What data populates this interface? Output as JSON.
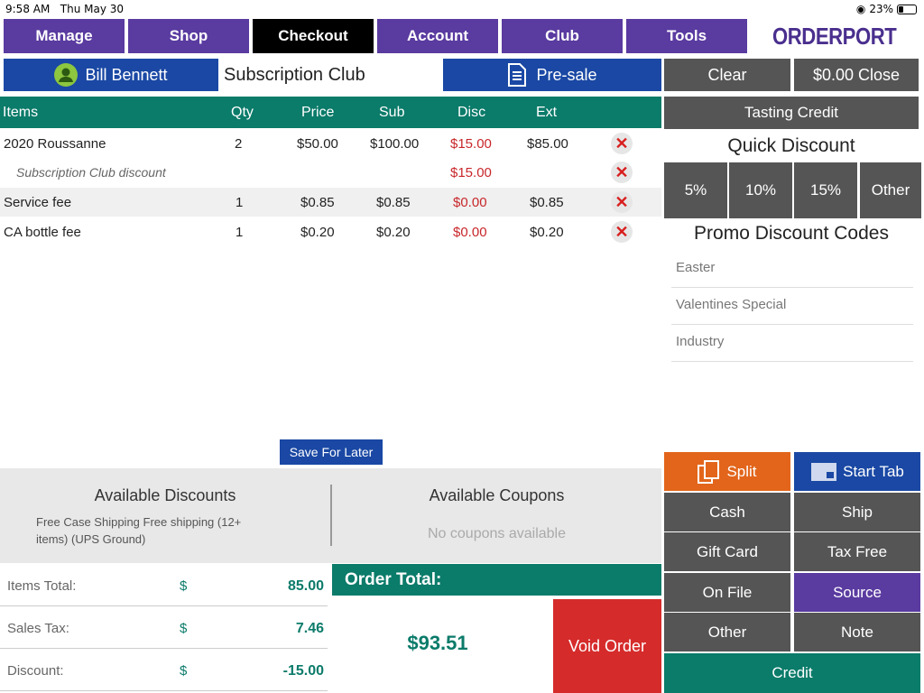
{
  "status_bar": {
    "time": "9:58 AM",
    "date": "Thu May 30",
    "battery": "23%"
  },
  "nav": {
    "manage": "Manage",
    "shop": "Shop",
    "checkout": "Checkout",
    "account": "Account",
    "club": "Club",
    "tools": "Tools"
  },
  "logo": {
    "text": "ORDERPORT"
  },
  "customer": {
    "name": "Bill Bennett",
    "club": "Subscription Club",
    "presale": "Pre-sale"
  },
  "actions": {
    "clear": "Clear",
    "close": "$0.00 Close",
    "tasting_credit": "Tasting Credit"
  },
  "table": {
    "headers": {
      "items": "Items",
      "qty": "Qty",
      "price": "Price",
      "sub": "Sub",
      "disc": "Disc",
      "ext": "Ext"
    },
    "rows": [
      {
        "item": "2020 Roussanne",
        "qty": "2",
        "price": "$50.00",
        "sub": "$100.00",
        "disc": "$15.00",
        "ext": "$85.00"
      },
      {
        "item": "Subscription Club discount",
        "qty": "",
        "price": "",
        "sub": "",
        "disc": "$15.00",
        "ext": ""
      },
      {
        "item": "Service fee",
        "qty": "1",
        "price": "$0.85",
        "sub": "$0.85",
        "disc": "$0.00",
        "ext": "$0.85"
      },
      {
        "item": "CA bottle fee",
        "qty": "1",
        "price": "$0.20",
        "sub": "$0.20",
        "disc": "$0.00",
        "ext": "$0.20"
      }
    ]
  },
  "quick_discount": {
    "title": "Quick Discount",
    "options": [
      "5%",
      "10%",
      "15%",
      "Other"
    ]
  },
  "promo": {
    "title": "Promo Discount Codes",
    "codes": [
      "Easter",
      "Valentines Special",
      "Industry"
    ]
  },
  "save_for_later": "Save For Later",
  "discounts": {
    "title": "Available Discounts",
    "text": "Free Case Shipping Free shipping (12+ items) (UPS Ground)"
  },
  "coupons": {
    "title": "Available Coupons",
    "empty": "No coupons available"
  },
  "summary": {
    "items_total_label": "Items Total:",
    "items_total": "85.00",
    "sales_tax_label": "Sales Tax:",
    "sales_tax": "7.46",
    "discount_label": "Discount:",
    "discount": "-15.00",
    "currency": "$"
  },
  "order_total": {
    "label": "Order Total:",
    "value": "$93.51",
    "void": "Void Order"
  },
  "payment": {
    "split": "Split",
    "start_tab": "Start Tab",
    "cash": "Cash",
    "ship": "Ship",
    "gift_card": "Gift Card",
    "tax_free": "Tax Free",
    "on_file": "On File",
    "source": "Source",
    "other": "Other",
    "note": "Note",
    "credit": "Credit"
  },
  "colors": {
    "purple": "#5a3ba0",
    "teal": "#0b7b6a",
    "blue": "#1a48a4",
    "gray": "#555555",
    "orange": "#e2651b",
    "red": "#d62b2b"
  }
}
